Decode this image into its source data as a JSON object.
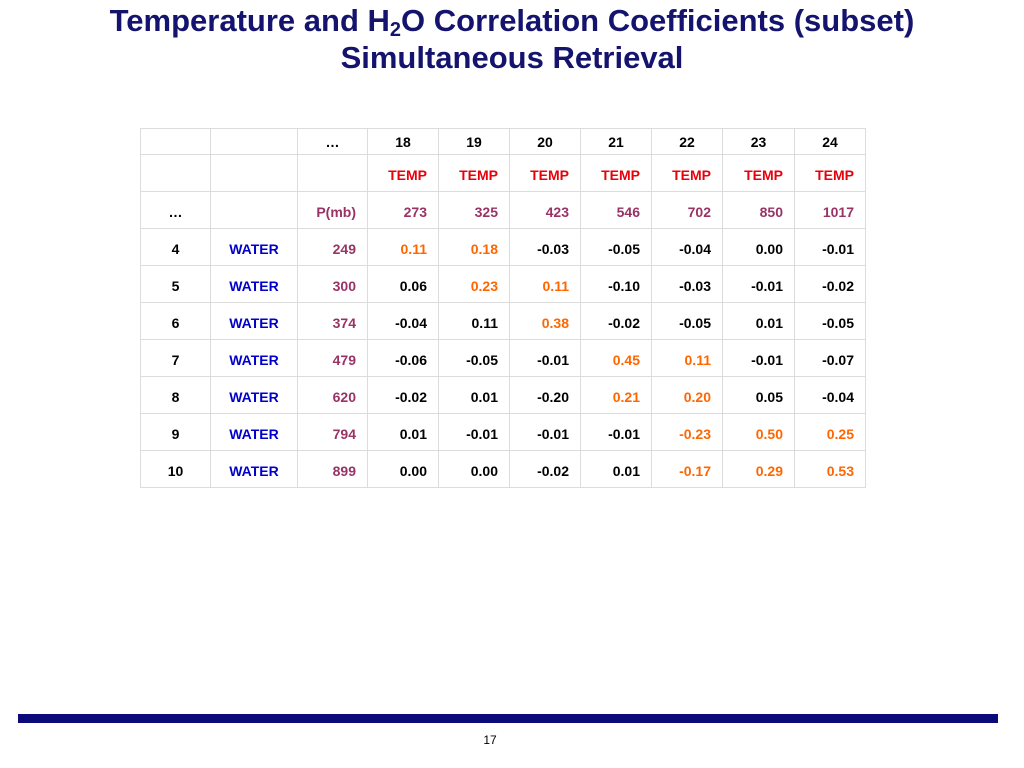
{
  "title": {
    "line1_parts": [
      "Temperature and H",
      "2",
      "O Correlation Coefficients (subset)"
    ],
    "line2": "Simultaneous Retrieval"
  },
  "table": {
    "header": [
      "…",
      "18",
      "19",
      "20",
      "21",
      "22",
      "23",
      "24"
    ],
    "temp_row": [
      "TEMP",
      "TEMP",
      "TEMP",
      "TEMP",
      "TEMP",
      "TEMP",
      "TEMP"
    ],
    "pressure_row": {
      "index": "…",
      "label": "P(mb)",
      "values": [
        "273",
        "325",
        "423",
        "546",
        "702",
        "850",
        "1017"
      ]
    },
    "rows": [
      {
        "index": "4",
        "type": "WATER",
        "pressure": "249",
        "values": [
          "0.11",
          "0.18",
          "-0.03",
          "-0.05",
          "-0.04",
          "0.00",
          "-0.01"
        ],
        "highlighted": [
          0,
          1
        ]
      },
      {
        "index": "5",
        "type": "WATER",
        "pressure": "300",
        "values": [
          "0.06",
          "0.23",
          "0.11",
          "-0.10",
          "-0.03",
          "-0.01",
          "-0.02"
        ],
        "highlighted": [
          1,
          2
        ]
      },
      {
        "index": "6",
        "type": "WATER",
        "pressure": "374",
        "values": [
          "-0.04",
          "0.11",
          "0.38",
          "-0.02",
          "-0.05",
          "0.01",
          "-0.05"
        ],
        "highlighted": [
          2
        ]
      },
      {
        "index": "7",
        "type": "WATER",
        "pressure": "479",
        "values": [
          "-0.06",
          "-0.05",
          "-0.01",
          "0.45",
          "0.11",
          "-0.01",
          "-0.07"
        ],
        "highlighted": [
          3,
          4
        ]
      },
      {
        "index": "8",
        "type": "WATER",
        "pressure": "620",
        "values": [
          "-0.02",
          "0.01",
          "-0.20",
          "0.21",
          "0.20",
          "0.05",
          "-0.04"
        ],
        "highlighted": [
          3,
          4
        ]
      },
      {
        "index": "9",
        "type": "WATER",
        "pressure": "794",
        "values": [
          "0.01",
          "-0.01",
          "-0.01",
          "-0.01",
          "-0.23",
          "0.50",
          "0.25"
        ],
        "highlighted": [
          4,
          5,
          6
        ]
      },
      {
        "index": "10",
        "type": "WATER",
        "pressure": "899",
        "values": [
          "0.00",
          "0.00",
          "-0.02",
          "0.01",
          "-0.17",
          "0.29",
          "0.53"
        ],
        "highlighted": [
          4,
          5,
          6
        ]
      }
    ],
    "colors": {
      "temp": "#e8000b",
      "water": "#0000cc",
      "pressure": "#993366",
      "highlight": "#ff6600",
      "value": "#000000"
    }
  },
  "footer": {
    "page": "17"
  }
}
